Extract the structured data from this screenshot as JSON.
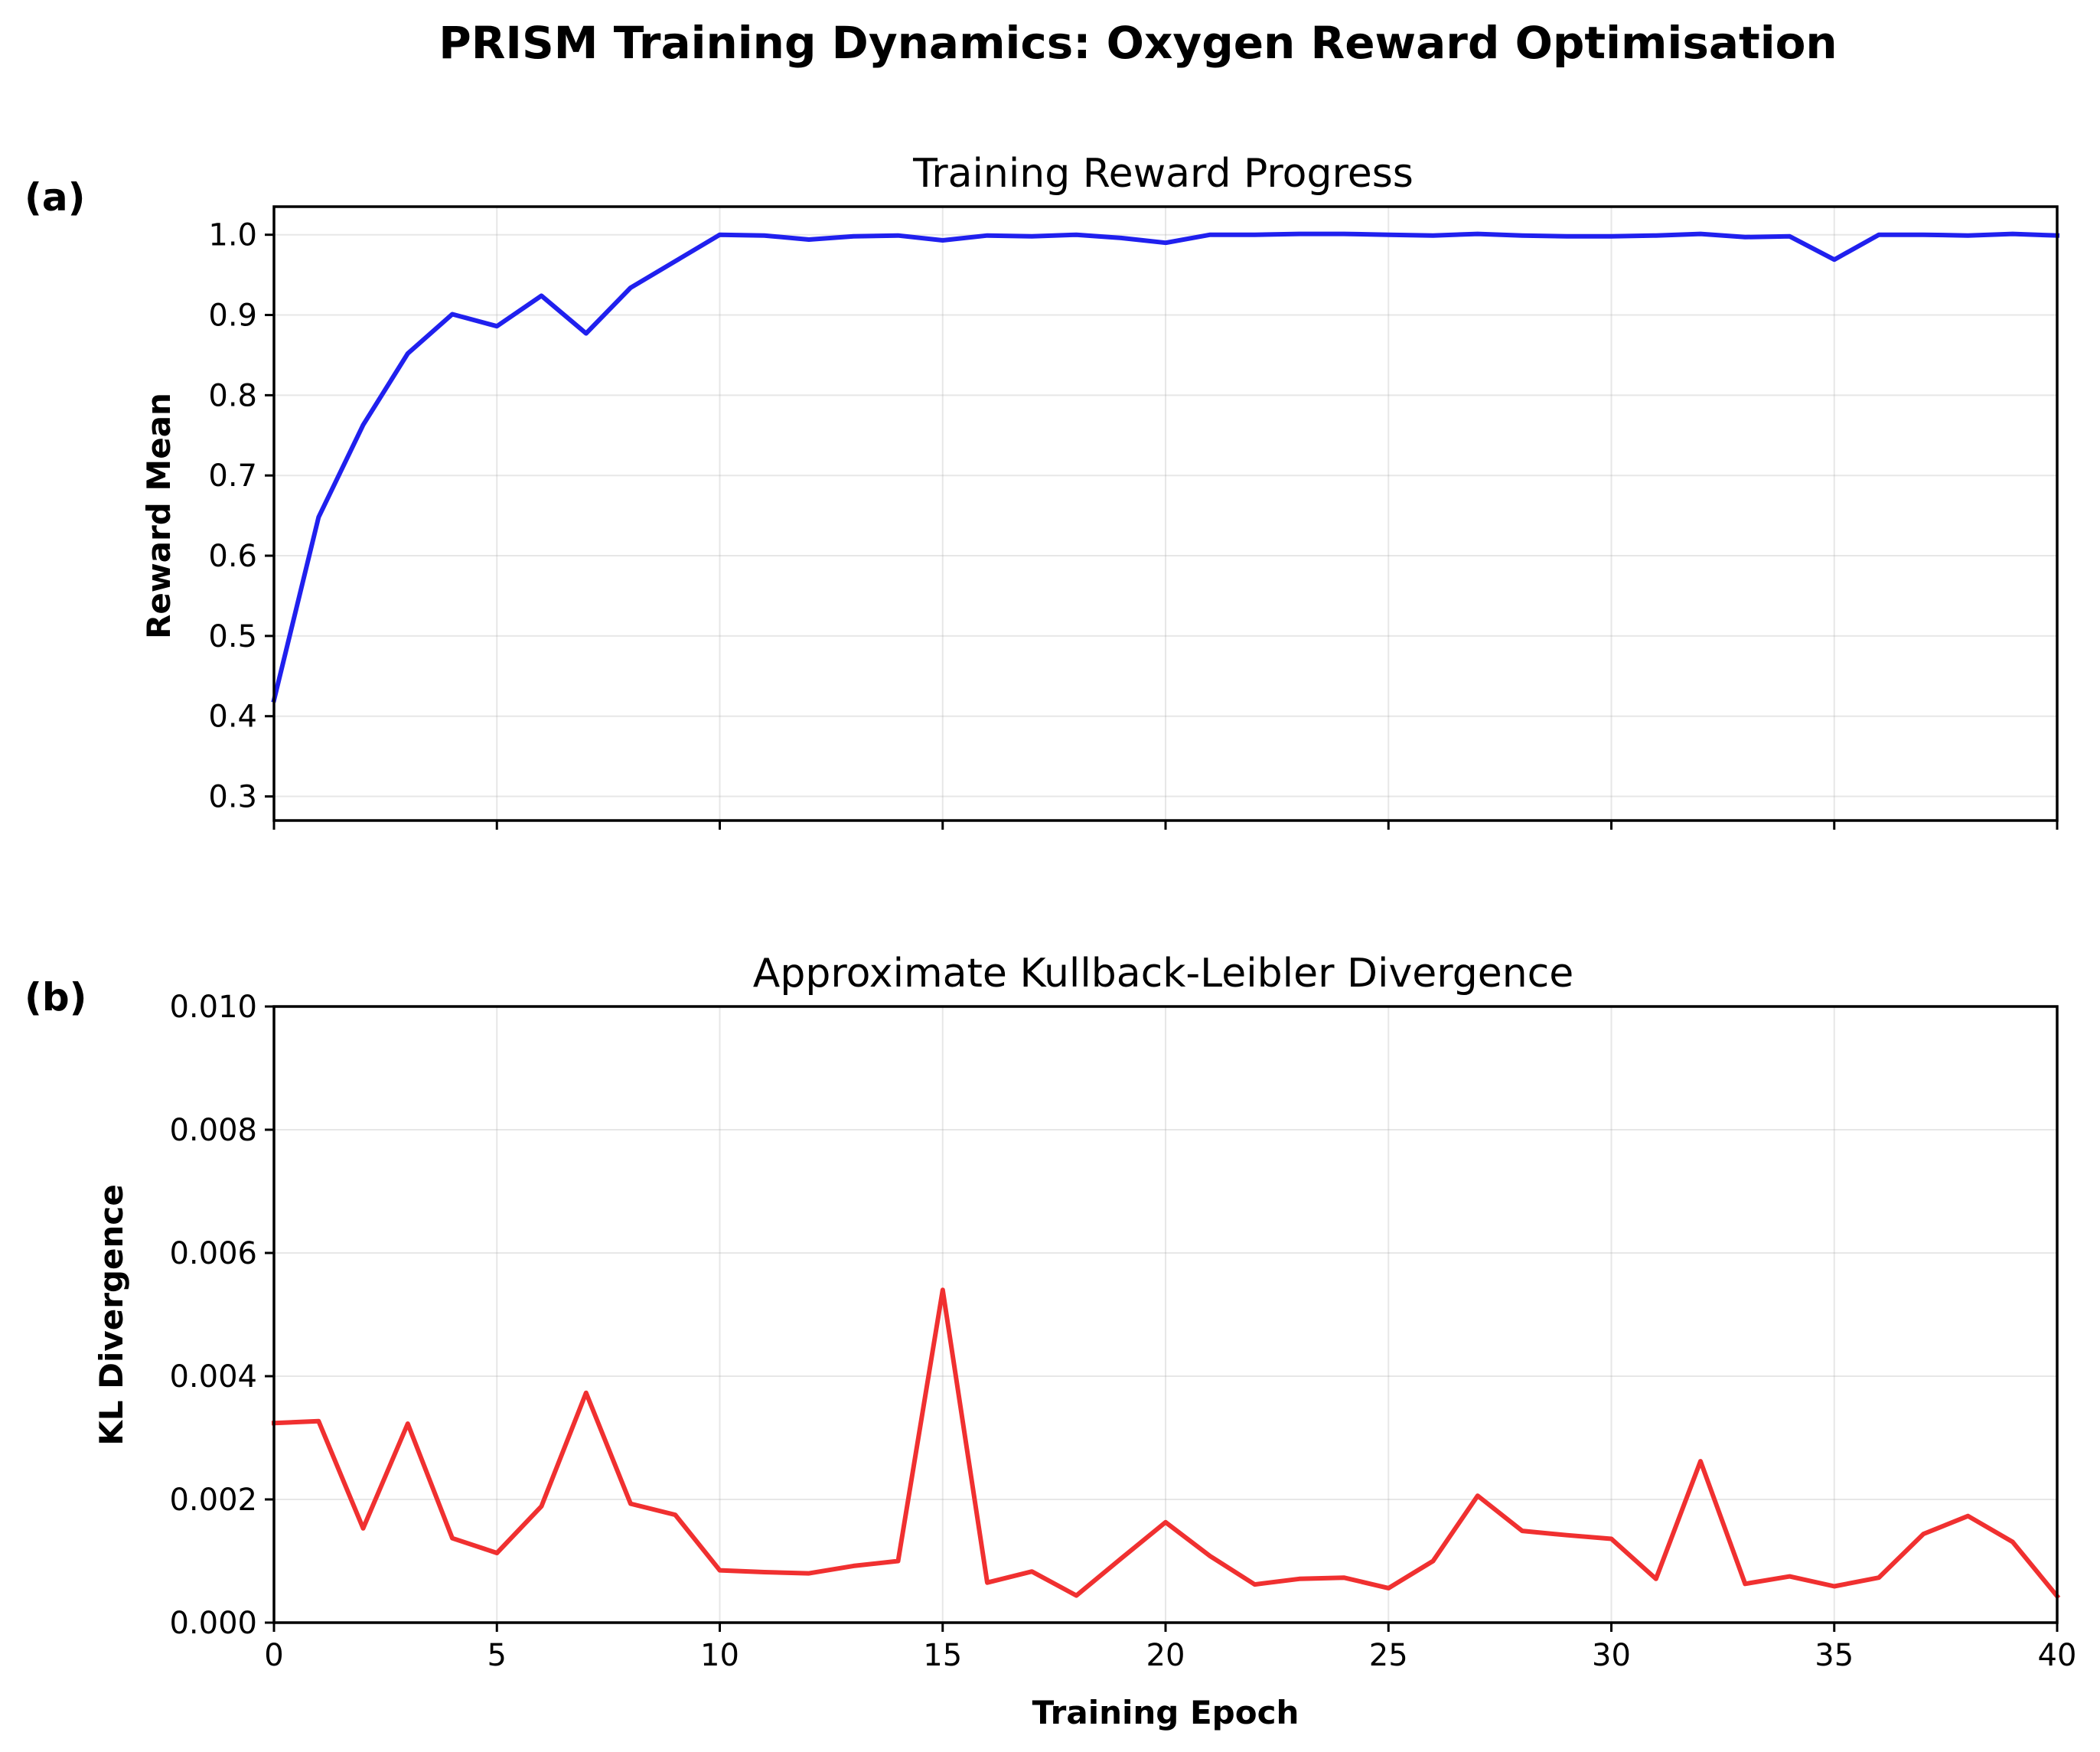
{
  "figure_title": "PRISM Training Dynamics: Oxygen Reward Optimisation",
  "chart_data": [
    {
      "panel": "(a)",
      "type": "line",
      "title": "Training Reward Progress",
      "xlabel": "",
      "ylabel": "Reward Mean",
      "xlim": [
        0,
        40
      ],
      "ylim": [
        0.27,
        1.035
      ],
      "xticks": [
        0,
        5,
        10,
        15,
        20,
        25,
        30,
        35,
        40
      ],
      "xtick_labels_visible": false,
      "yticks": [
        0.3,
        0.4,
        0.5,
        0.6,
        0.7,
        0.8,
        0.9,
        1.0
      ],
      "ytick_labels": [
        "0.3",
        "0.4",
        "0.5",
        "0.6",
        "0.7",
        "0.8",
        "0.9",
        "1.0"
      ],
      "grid": true,
      "series": [
        {
          "color": "#2020ee",
          "x": [
            0,
            1,
            2,
            3,
            4,
            5,
            6,
            7,
            8,
            9,
            10,
            11,
            12,
            13,
            14,
            15,
            16,
            17,
            18,
            19,
            20,
            21,
            22,
            23,
            24,
            25,
            26,
            27,
            28,
            29,
            30,
            31,
            32,
            33,
            34,
            35,
            36,
            37,
            38,
            39,
            40
          ],
          "y": [
            0.42,
            0.648,
            0.763,
            0.852,
            0.901,
            0.886,
            0.924,
            0.877,
            0.934,
            0.967,
            1.0,
            0.999,
            0.994,
            0.998,
            0.999,
            0.993,
            0.999,
            0.998,
            1.0,
            0.996,
            0.99,
            1.0,
            1.0,
            1.001,
            1.001,
            1.0,
            0.999,
            1.001,
            0.999,
            0.998,
            0.998,
            0.999,
            1.001,
            0.997,
            0.998,
            0.969,
            1.0,
            1.0,
            0.999,
            1.001,
            0.999
          ]
        }
      ]
    },
    {
      "panel": "(b)",
      "type": "line",
      "title": "Approximate Kullback-Leibler Divergence",
      "xlabel": "Training Epoch",
      "ylabel": "KL Divergence",
      "xlim": [
        0,
        40
      ],
      "ylim": [
        0.0,
        0.01
      ],
      "xticks": [
        0,
        5,
        10,
        15,
        20,
        25,
        30,
        35,
        40
      ],
      "xtick_labels": [
        "0",
        "5",
        "10",
        "15",
        "20",
        "25",
        "30",
        "35",
        "40"
      ],
      "yticks": [
        0.0,
        0.002,
        0.004,
        0.006,
        0.008,
        0.01
      ],
      "ytick_labels": [
        "0.000",
        "0.002",
        "0.004",
        "0.006",
        "0.008",
        "0.010"
      ],
      "grid": true,
      "series": [
        {
          "color": "#f03030",
          "x": [
            0,
            1,
            2,
            3,
            4,
            5,
            6,
            7,
            8,
            9,
            10,
            11,
            12,
            13,
            14,
            15,
            16,
            17,
            18,
            19,
            20,
            21,
            22,
            23,
            24,
            25,
            26,
            27,
            28,
            29,
            30,
            31,
            32,
            33,
            34,
            35,
            36,
            37,
            38,
            39,
            40
          ],
          "y": [
            0.00324,
            0.00327,
            0.00153,
            0.00323,
            0.00137,
            0.00113,
            0.00189,
            0.00373,
            0.00193,
            0.00175,
            0.00085,
            0.00082,
            0.0008,
            0.00092,
            0.001,
            0.0054,
            0.00065,
            0.00083,
            0.00044,
            0.00104,
            0.00163,
            0.00108,
            0.00062,
            0.00071,
            0.00073,
            0.00056,
            0.001,
            0.00206,
            0.00149,
            0.00142,
            0.00136,
            0.00071,
            0.00262,
            0.00063,
            0.00075,
            0.00059,
            0.00073,
            0.00144,
            0.00173,
            0.00131,
            0.00043
          ]
        }
      ]
    }
  ]
}
